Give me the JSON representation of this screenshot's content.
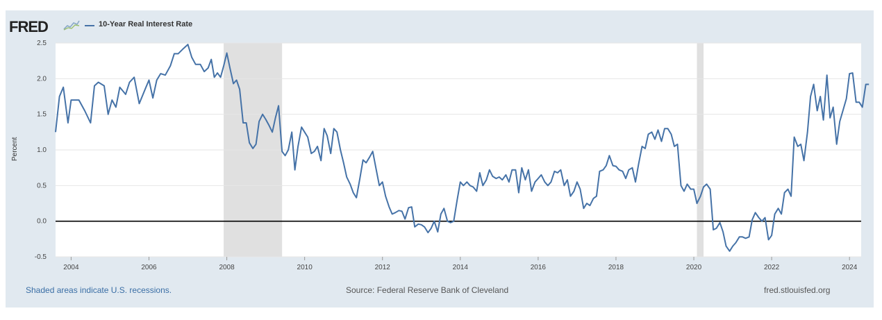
{
  "header": {
    "logo_text": "FRED",
    "legend_label": "10-Year Real Interest Rate",
    "series_color": "#4572a7"
  },
  "footer": {
    "left": "Shaded areas indicate U.S. recessions.",
    "middle": "Source: Federal Reserve Bank of Cleveland",
    "right": "fred.stlouisfed.org"
  },
  "chart_data": {
    "type": "line",
    "title": "10-Year Real Interest Rate",
    "xlabel": "",
    "ylabel": "Percent",
    "xlim": [
      2003.6,
      2024.3
    ],
    "ylim": [
      -0.5,
      2.5
    ],
    "yticks": [
      -0.5,
      0.0,
      0.5,
      1.0,
      1.5,
      2.0,
      2.5
    ],
    "xticks": [
      2004,
      2006,
      2008,
      2010,
      2012,
      2014,
      2016,
      2018,
      2020,
      2022,
      2024
    ],
    "zero_line": 0,
    "grid": true,
    "recessions": [
      [
        2007.92,
        2009.42
      ],
      [
        2020.08,
        2020.25
      ]
    ],
    "series": [
      {
        "name": "10-Year Real Interest Rate",
        "color": "#4572a7",
        "points": [
          [
            2003.6,
            1.25
          ],
          [
            2003.7,
            1.75
          ],
          [
            2003.8,
            1.88
          ],
          [
            2003.92,
            1.38
          ],
          [
            2004.0,
            1.7
          ],
          [
            2004.2,
            1.7
          ],
          [
            2004.35,
            1.55
          ],
          [
            2004.5,
            1.38
          ],
          [
            2004.6,
            1.9
          ],
          [
            2004.7,
            1.95
          ],
          [
            2004.85,
            1.9
          ],
          [
            2004.95,
            1.5
          ],
          [
            2005.05,
            1.7
          ],
          [
            2005.15,
            1.6
          ],
          [
            2005.25,
            1.88
          ],
          [
            2005.4,
            1.78
          ],
          [
            2005.5,
            1.95
          ],
          [
            2005.62,
            2.02
          ],
          [
            2005.75,
            1.65
          ],
          [
            2005.9,
            1.85
          ],
          [
            2006.0,
            1.98
          ],
          [
            2006.1,
            1.73
          ],
          [
            2006.2,
            1.98
          ],
          [
            2006.3,
            2.07
          ],
          [
            2006.42,
            2.05
          ],
          [
            2006.55,
            2.18
          ],
          [
            2006.65,
            2.35
          ],
          [
            2006.75,
            2.35
          ],
          [
            2006.88,
            2.42
          ],
          [
            2007.0,
            2.48
          ],
          [
            2007.1,
            2.3
          ],
          [
            2007.2,
            2.2
          ],
          [
            2007.32,
            2.2
          ],
          [
            2007.42,
            2.1
          ],
          [
            2007.52,
            2.15
          ],
          [
            2007.6,
            2.27
          ],
          [
            2007.68,
            2.02
          ],
          [
            2007.76,
            2.08
          ],
          [
            2007.84,
            2.02
          ],
          [
            2007.92,
            2.18
          ],
          [
            2008.0,
            2.36
          ],
          [
            2008.08,
            2.15
          ],
          [
            2008.17,
            1.93
          ],
          [
            2008.25,
            1.98
          ],
          [
            2008.33,
            1.85
          ],
          [
            2008.42,
            1.38
          ],
          [
            2008.5,
            1.38
          ],
          [
            2008.58,
            1.1
          ],
          [
            2008.67,
            1.02
          ],
          [
            2008.75,
            1.08
          ],
          [
            2008.83,
            1.4
          ],
          [
            2008.92,
            1.5
          ],
          [
            2009.0,
            1.43
          ],
          [
            2009.08,
            1.35
          ],
          [
            2009.17,
            1.25
          ],
          [
            2009.25,
            1.45
          ],
          [
            2009.33,
            1.62
          ],
          [
            2009.42,
            0.98
          ],
          [
            2009.5,
            0.92
          ],
          [
            2009.58,
            1.0
          ],
          [
            2009.67,
            1.25
          ],
          [
            2009.75,
            0.72
          ],
          [
            2009.83,
            1.05
          ],
          [
            2009.92,
            1.32
          ],
          [
            2010.0,
            1.25
          ],
          [
            2010.08,
            1.18
          ],
          [
            2010.17,
            0.95
          ],
          [
            2010.25,
            0.98
          ],
          [
            2010.33,
            1.05
          ],
          [
            2010.42,
            0.85
          ],
          [
            2010.5,
            1.3
          ],
          [
            2010.58,
            1.2
          ],
          [
            2010.67,
            0.95
          ],
          [
            2010.75,
            1.3
          ],
          [
            2010.83,
            1.25
          ],
          [
            2010.92,
            1.0
          ],
          [
            2011.0,
            0.82
          ],
          [
            2011.08,
            0.62
          ],
          [
            2011.17,
            0.52
          ],
          [
            2011.25,
            0.4
          ],
          [
            2011.33,
            0.33
          ],
          [
            2011.42,
            0.6
          ],
          [
            2011.5,
            0.86
          ],
          [
            2011.58,
            0.82
          ],
          [
            2011.67,
            0.9
          ],
          [
            2011.75,
            0.98
          ],
          [
            2011.83,
            0.75
          ],
          [
            2011.92,
            0.5
          ],
          [
            2012.0,
            0.55
          ],
          [
            2012.08,
            0.35
          ],
          [
            2012.17,
            0.2
          ],
          [
            2012.25,
            0.1
          ],
          [
            2012.33,
            0.12
          ],
          [
            2012.42,
            0.15
          ],
          [
            2012.5,
            0.14
          ],
          [
            2012.58,
            0.03
          ],
          [
            2012.67,
            0.19
          ],
          [
            2012.75,
            0.2
          ],
          [
            2012.83,
            -0.08
          ],
          [
            2012.92,
            -0.04
          ],
          [
            2013.0,
            -0.05
          ],
          [
            2013.08,
            -0.08
          ],
          [
            2013.17,
            -0.16
          ],
          [
            2013.25,
            -0.1
          ],
          [
            2013.33,
            0.0
          ],
          [
            2013.42,
            -0.15
          ],
          [
            2013.5,
            0.1
          ],
          [
            2013.58,
            0.18
          ],
          [
            2013.67,
            0.0
          ],
          [
            2013.75,
            -0.02
          ],
          [
            2013.83,
            0.0
          ],
          [
            2013.92,
            0.3
          ],
          [
            2014.0,
            0.55
          ],
          [
            2014.08,
            0.5
          ],
          [
            2014.17,
            0.55
          ],
          [
            2014.25,
            0.5
          ],
          [
            2014.33,
            0.48
          ],
          [
            2014.42,
            0.42
          ],
          [
            2014.5,
            0.68
          ],
          [
            2014.58,
            0.5
          ],
          [
            2014.67,
            0.58
          ],
          [
            2014.75,
            0.72
          ],
          [
            2014.83,
            0.63
          ],
          [
            2014.92,
            0.6
          ],
          [
            2015.0,
            0.62
          ],
          [
            2015.08,
            0.58
          ],
          [
            2015.17,
            0.65
          ],
          [
            2015.25,
            0.55
          ],
          [
            2015.33,
            0.72
          ],
          [
            2015.42,
            0.72
          ],
          [
            2015.5,
            0.4
          ],
          [
            2015.58,
            0.75
          ],
          [
            2015.67,
            0.58
          ],
          [
            2015.75,
            0.72
          ],
          [
            2015.83,
            0.42
          ],
          [
            2015.92,
            0.55
          ],
          [
            2016.0,
            0.6
          ],
          [
            2016.08,
            0.65
          ],
          [
            2016.17,
            0.55
          ],
          [
            2016.25,
            0.5
          ],
          [
            2016.33,
            0.55
          ],
          [
            2016.42,
            0.7
          ],
          [
            2016.5,
            0.68
          ],
          [
            2016.58,
            0.72
          ],
          [
            2016.67,
            0.5
          ],
          [
            2016.75,
            0.58
          ],
          [
            2016.83,
            0.35
          ],
          [
            2016.92,
            0.42
          ],
          [
            2017.0,
            0.55
          ],
          [
            2017.08,
            0.45
          ],
          [
            2017.17,
            0.18
          ],
          [
            2017.25,
            0.25
          ],
          [
            2017.33,
            0.22
          ],
          [
            2017.42,
            0.32
          ],
          [
            2017.5,
            0.35
          ],
          [
            2017.58,
            0.7
          ],
          [
            2017.67,
            0.72
          ],
          [
            2017.75,
            0.78
          ],
          [
            2017.83,
            0.92
          ],
          [
            2017.92,
            0.78
          ],
          [
            2018.0,
            0.77
          ],
          [
            2018.08,
            0.72
          ],
          [
            2018.17,
            0.7
          ],
          [
            2018.25,
            0.6
          ],
          [
            2018.33,
            0.72
          ],
          [
            2018.42,
            0.75
          ],
          [
            2018.5,
            0.55
          ],
          [
            2018.58,
            0.8
          ],
          [
            2018.67,
            1.05
          ],
          [
            2018.75,
            1.02
          ],
          [
            2018.83,
            1.22
          ],
          [
            2018.92,
            1.25
          ],
          [
            2019.0,
            1.15
          ],
          [
            2019.08,
            1.28
          ],
          [
            2019.17,
            1.12
          ],
          [
            2019.25,
            1.3
          ],
          [
            2019.33,
            1.3
          ],
          [
            2019.42,
            1.22
          ],
          [
            2019.5,
            1.05
          ],
          [
            2019.58,
            1.08
          ],
          [
            2019.67,
            0.5
          ],
          [
            2019.75,
            0.42
          ],
          [
            2019.83,
            0.52
          ],
          [
            2019.92,
            0.45
          ],
          [
            2020.0,
            0.45
          ],
          [
            2020.08,
            0.25
          ],
          [
            2020.17,
            0.35
          ],
          [
            2020.25,
            0.48
          ],
          [
            2020.33,
            0.52
          ],
          [
            2020.42,
            0.45
          ],
          [
            2020.5,
            -0.12
          ],
          [
            2020.58,
            -0.1
          ],
          [
            2020.67,
            -0.02
          ],
          [
            2020.75,
            -0.15
          ],
          [
            2020.83,
            -0.35
          ],
          [
            2020.92,
            -0.42
          ],
          [
            2021.0,
            -0.35
          ],
          [
            2021.08,
            -0.3
          ],
          [
            2021.17,
            -0.22
          ],
          [
            2021.25,
            -0.22
          ],
          [
            2021.33,
            -0.24
          ],
          [
            2021.42,
            -0.22
          ],
          [
            2021.5,
            0.02
          ],
          [
            2021.58,
            0.12
          ],
          [
            2021.67,
            0.05
          ],
          [
            2021.75,
            0.0
          ],
          [
            2021.83,
            0.05
          ],
          [
            2021.92,
            -0.26
          ],
          [
            2022.0,
            -0.2
          ],
          [
            2022.08,
            0.1
          ],
          [
            2022.17,
            0.18
          ],
          [
            2022.25,
            0.1
          ],
          [
            2022.33,
            0.4
          ],
          [
            2022.42,
            0.45
          ],
          [
            2022.5,
            0.35
          ],
          [
            2022.58,
            1.18
          ],
          [
            2022.67,
            1.05
          ],
          [
            2022.75,
            1.08
          ],
          [
            2022.83,
            0.85
          ],
          [
            2022.92,
            1.25
          ],
          [
            2023.0,
            1.75
          ],
          [
            2023.08,
            1.92
          ],
          [
            2023.17,
            1.55
          ],
          [
            2023.25,
            1.75
          ],
          [
            2023.33,
            1.42
          ],
          [
            2023.42,
            2.05
          ],
          [
            2023.5,
            1.45
          ],
          [
            2023.58,
            1.6
          ],
          [
            2023.67,
            1.08
          ],
          [
            2023.75,
            1.4
          ],
          [
            2023.83,
            1.55
          ],
          [
            2023.92,
            1.72
          ],
          [
            2024.0,
            2.07
          ],
          [
            2024.08,
            2.08
          ],
          [
            2024.17,
            1.67
          ],
          [
            2024.25,
            1.67
          ],
          [
            2024.33,
            1.6
          ],
          [
            2024.42,
            1.92
          ],
          [
            2024.5,
            1.92
          ]
        ]
      }
    ]
  }
}
